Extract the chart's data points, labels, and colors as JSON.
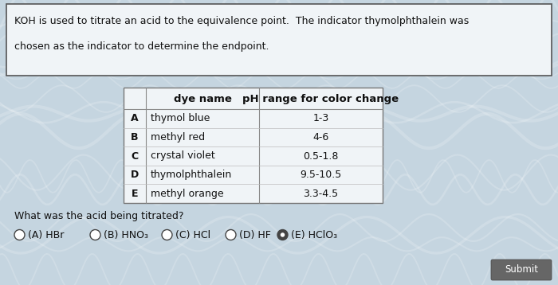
{
  "background_color": "#c5d5e0",
  "question_box_color": "#f0f4f7",
  "table_box_color": "#f0f4f7",
  "title_line1": "KOH is used to titrate an acid to the equivalence point.  The indicator thymolphthalein was",
  "title_line2": "chosen as the indicator to determine the endpoint.",
  "table_headers": [
    "dye name",
    "pH range for color change"
  ],
  "table_rows": [
    [
      "A",
      "thymol blue",
      "1-3"
    ],
    [
      "B",
      "methyl red",
      "4-6"
    ],
    [
      "C",
      "crystal violet",
      "0.5-1.8"
    ],
    [
      "D",
      "thymolphthalein",
      "9.5-10.5"
    ],
    [
      "E",
      "methyl orange",
      "3.3-4.5"
    ]
  ],
  "question_text": "What was the acid being titrated?",
  "choices": [
    "(A) HBr",
    "(B) HNO₃",
    "(C) HCl",
    "(D) HF",
    "(E) HClO₃"
  ],
  "selected_choice": 4,
  "submit_button_color": "#666666",
  "submit_button_text": "Submit",
  "font_size_title": 9.0,
  "font_size_table_header": 9.5,
  "font_size_table": 9.0,
  "font_size_question": 9.0,
  "font_size_choices": 9.0,
  "fig_width": 7.0,
  "fig_height": 3.58,
  "dpi": 100
}
